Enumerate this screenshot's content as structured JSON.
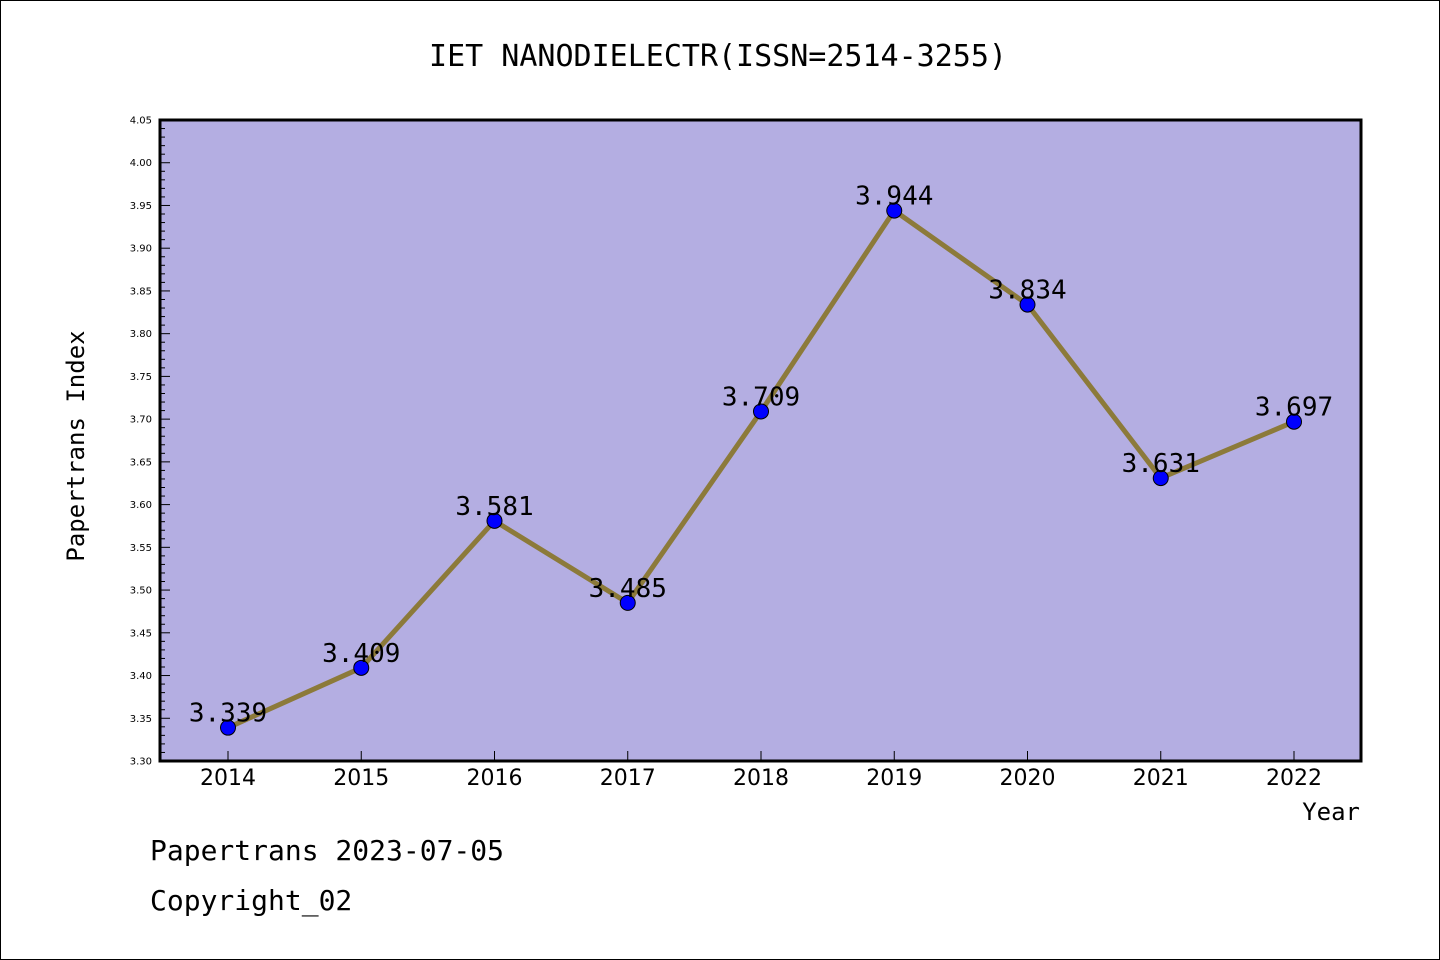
{
  "chart_data": {
    "type": "line",
    "title": "IET NANODIELECTR(ISSN=2514-3255)",
    "xlabel": "Year",
    "ylabel": "Papertrans Index",
    "categories": [
      "2014",
      "2015",
      "2016",
      "2017",
      "2018",
      "2019",
      "2020",
      "2021",
      "2022"
    ],
    "series": [
      {
        "values": [
          3.339,
          3.409,
          3.581,
          3.485,
          3.709,
          3.944,
          3.834,
          3.631,
          3.697
        ],
        "labels": [
          "3.339",
          "3.409",
          "3.581",
          "3.485",
          "3.709",
          "3.944",
          "3.834",
          "3.631",
          "3.697"
        ]
      }
    ],
    "ylim": [
      3.3,
      4.05
    ],
    "yticks": [
      "3.30",
      "3.35",
      "3.40",
      "3.45",
      "3.50",
      "3.55",
      "3.60",
      "3.65",
      "3.70",
      "3.75",
      "3.80",
      "3.85",
      "3.90",
      "3.95",
      "4.00",
      "4.05"
    ],
    "grid": false,
    "colors": {
      "plot_background": "#b4aee2",
      "line": "#8c7a3a",
      "marker": "#0000ff"
    }
  },
  "footer": {
    "date_line": "Papertrans 2023-07-05",
    "copyright_line": "Copyright_02"
  }
}
